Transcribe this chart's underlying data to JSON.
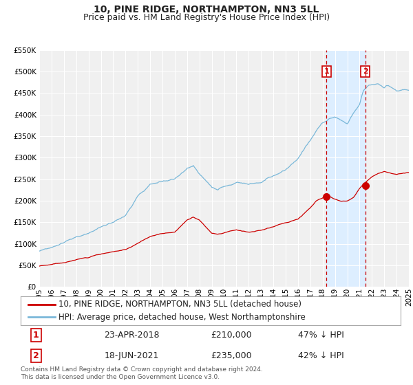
{
  "title": "10, PINE RIDGE, NORTHAMPTON, NN3 5LL",
  "subtitle": "Price paid vs. HM Land Registry's House Price Index (HPI)",
  "xlim": [
    1995,
    2025
  ],
  "ylim": [
    0,
    550000
  ],
  "yticks": [
    0,
    50000,
    100000,
    150000,
    200000,
    250000,
    300000,
    350000,
    400000,
    450000,
    500000,
    550000
  ],
  "xticks": [
    1995,
    1996,
    1997,
    1998,
    1999,
    2000,
    2001,
    2002,
    2003,
    2004,
    2005,
    2006,
    2007,
    2008,
    2009,
    2010,
    2011,
    2012,
    2013,
    2014,
    2015,
    2016,
    2017,
    2018,
    2019,
    2020,
    2021,
    2022,
    2023,
    2024,
    2025
  ],
  "hpi_color": "#7ab8d9",
  "price_color": "#cc0000",
  "shade_color": "#ddeeff",
  "vline_color": "#cc0000",
  "marker_color": "#cc0000",
  "background_color": "#f0f0f0",
  "grid_color": "#ffffff",
  "legend_label_price": "10, PINE RIDGE, NORTHAMPTON, NN3 5LL (detached house)",
  "legend_label_hpi": "HPI: Average price, detached house, West Northamptonshire",
  "sale1_date": 2018.31,
  "sale1_price": 210000,
  "sale1_label": "1",
  "sale1_text": "23-APR-2018",
  "sale1_amount": "£210,000",
  "sale1_pct": "47% ↓ HPI",
  "sale2_date": 2021.46,
  "sale2_price": 235000,
  "sale2_label": "2",
  "sale2_text": "18-JUN-2021",
  "sale2_amount": "£235,000",
  "sale2_pct": "42% ↓ HPI",
  "footer": "Contains HM Land Registry data © Crown copyright and database right 2024.\nThis data is licensed under the Open Government Licence v3.0.",
  "title_fontsize": 10,
  "subtitle_fontsize": 9,
  "tick_fontsize": 7.5,
  "legend_fontsize": 8.5,
  "table_fontsize": 9,
  "footer_fontsize": 6.5
}
